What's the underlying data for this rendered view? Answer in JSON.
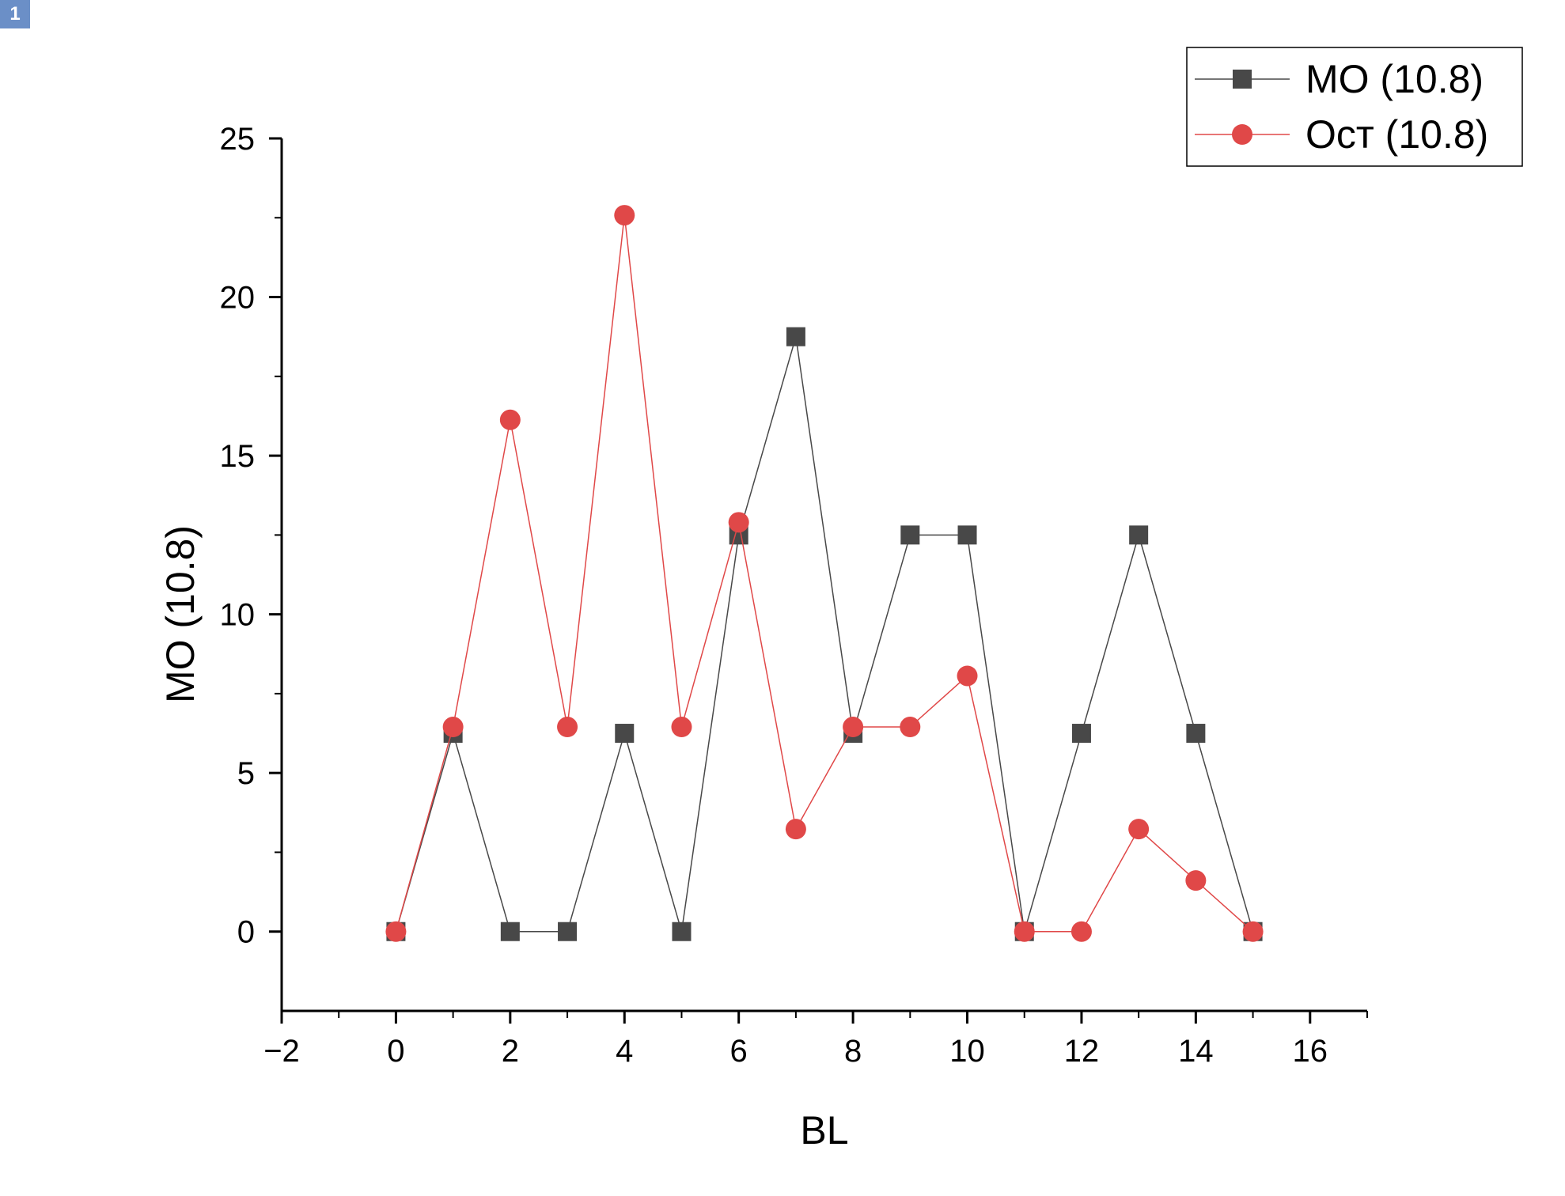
{
  "page_badge": "1",
  "chart_data": {
    "type": "line",
    "title": "",
    "xlabel": "BL",
    "ylabel": "MO (10.8)",
    "xlim": [
      -2,
      17
    ],
    "ylim": [
      -2.5,
      25
    ],
    "x_ticks": [
      -2,
      0,
      2,
      4,
      6,
      8,
      10,
      12,
      14,
      16
    ],
    "x_tick_labels": [
      "−2",
      "0",
      "2",
      "4",
      "6",
      "8",
      "10",
      "12",
      "14",
      "16"
    ],
    "y_ticks": [
      0,
      5,
      10,
      15,
      20,
      25
    ],
    "y_tick_labels": [
      "0",
      "5",
      "10",
      "15",
      "20",
      "25"
    ],
    "grid": false,
    "legend_position": "top-right",
    "x": [
      0,
      1,
      2,
      3,
      4,
      5,
      6,
      7,
      8,
      9,
      10,
      11,
      12,
      13,
      14,
      15
    ],
    "series": [
      {
        "name": "MO (10.8)",
        "color": "#484848",
        "marker": "square",
        "values": [
          0,
          6.25,
          0,
          0,
          6.25,
          0,
          12.5,
          18.75,
          6.25,
          12.5,
          12.5,
          0,
          6.25,
          12.5,
          6.25,
          0
        ]
      },
      {
        "name": "Ост (10.8)",
        "color": "#e04848",
        "marker": "circle",
        "values": [
          0,
          6.45,
          16.13,
          6.45,
          22.58,
          6.45,
          12.9,
          3.23,
          6.45,
          6.45,
          8.06,
          0,
          0,
          3.23,
          1.61,
          0
        ]
      }
    ]
  }
}
